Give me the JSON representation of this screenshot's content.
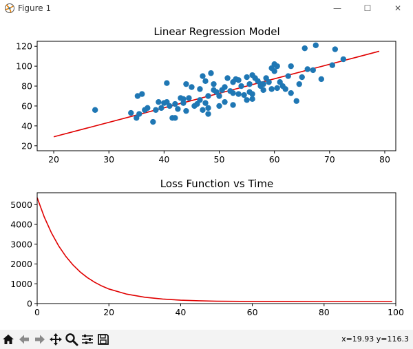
{
  "window": {
    "title": "Figure 1",
    "minimize_glyph": "—",
    "maximize_glyph": "☐",
    "close_glyph": "✕"
  },
  "toolbar": {
    "icons": [
      "home-icon",
      "back-arrow-icon",
      "forward-arrow-icon",
      "pan-icon",
      "zoom-icon",
      "configure-subplots-icon",
      "save-icon"
    ],
    "coordinates": "x=19.93 y=116.3"
  },
  "colors": {
    "scatter": "#1f77b4",
    "line": "#e00000"
  },
  "chart_data": [
    {
      "type": "scatter",
      "title": "Linear Regression Model",
      "xlabel": "",
      "ylabel": "",
      "xlim": [
        17,
        82
      ],
      "ylim": [
        15,
        125
      ],
      "xticks": [
        20,
        30,
        40,
        50,
        60,
        70,
        80
      ],
      "yticks": [
        20,
        40,
        60,
        80,
        100,
        120
      ],
      "points": [
        [
          27.5,
          56
        ],
        [
          34,
          53
        ],
        [
          35,
          48
        ],
        [
          35.2,
          70
        ],
        [
          35.5,
          52
        ],
        [
          36,
          72
        ],
        [
          36.5,
          56
        ],
        [
          37,
          58
        ],
        [
          38,
          44
        ],
        [
          38.5,
          56
        ],
        [
          39,
          64
        ],
        [
          39.5,
          58
        ],
        [
          40,
          63
        ],
        [
          40.5,
          64
        ],
        [
          40.5,
          83
        ],
        [
          41,
          60
        ],
        [
          41.5,
          48
        ],
        [
          42,
          48
        ],
        [
          42,
          62
        ],
        [
          42.5,
          57
        ],
        [
          43,
          68
        ],
        [
          43.5,
          63
        ],
        [
          43.5,
          67
        ],
        [
          44,
          82
        ],
        [
          44,
          55
        ],
        [
          44.5,
          68
        ],
        [
          45,
          79
        ],
        [
          45.5,
          60
        ],
        [
          46,
          62
        ],
        [
          46.5,
          66
        ],
        [
          46.5,
          77
        ],
        [
          47,
          90
        ],
        [
          47,
          56
        ],
        [
          47.5,
          85
        ],
        [
          47.5,
          63
        ],
        [
          48,
          58
        ],
        [
          48,
          70
        ],
        [
          48,
          52
        ],
        [
          48.5,
          93
        ],
        [
          49,
          82
        ],
        [
          49,
          76
        ],
        [
          49.5,
          74
        ],
        [
          50,
          60
        ],
        [
          50,
          70
        ],
        [
          50.5,
          76
        ],
        [
          51,
          79
        ],
        [
          51,
          64
        ],
        [
          51.5,
          88
        ],
        [
          52,
          75
        ],
        [
          52.5,
          73
        ],
        [
          52.5,
          84
        ],
        [
          52.5,
          61
        ],
        [
          53,
          87
        ],
        [
          53.5,
          86
        ],
        [
          53.5,
          72
        ],
        [
          54,
          80
        ],
        [
          54.5,
          71
        ],
        [
          55,
          89
        ],
        [
          55,
          66
        ],
        [
          55.5,
          74
        ],
        [
          55.5,
          82
        ],
        [
          56,
          91
        ],
        [
          56,
          72
        ],
        [
          56,
          67
        ],
        [
          56.5,
          88
        ],
        [
          57,
          85
        ],
        [
          57.5,
          82
        ],
        [
          57.5,
          80
        ],
        [
          58,
          76
        ],
        [
          58,
          82
        ],
        [
          58.5,
          88
        ],
        [
          59,
          84
        ],
        [
          59.5,
          98
        ],
        [
          59.5,
          77
        ],
        [
          60,
          95
        ],
        [
          60,
          102
        ],
        [
          60.5,
          100
        ],
        [
          60.5,
          78
        ],
        [
          61,
          84
        ],
        [
          61.5,
          80
        ],
        [
          62,
          77
        ],
        [
          62.5,
          90
        ],
        [
          63,
          73
        ],
        [
          63,
          100
        ],
        [
          64,
          65
        ],
        [
          64.5,
          82
        ],
        [
          65,
          89
        ],
        [
          65.5,
          118
        ],
        [
          66,
          97
        ],
        [
          67,
          96
        ],
        [
          67.5,
          121
        ],
        [
          68.5,
          87
        ],
        [
          70.5,
          101
        ],
        [
          71,
          117
        ],
        [
          72.5,
          107
        ]
      ],
      "series": [
        {
          "type": "line",
          "x": [
            20,
            79
          ],
          "y": [
            29,
            115
          ]
        }
      ]
    },
    {
      "type": "line",
      "title": "Loss Function vs Time",
      "xlabel": "",
      "ylabel": "",
      "xlim": [
        0,
        100
      ],
      "ylim": [
        0,
        5600
      ],
      "xticks": [
        0,
        20,
        40,
        60,
        80,
        100
      ],
      "yticks": [
        0,
        1000,
        2000,
        3000,
        4000,
        5000
      ],
      "series": [
        {
          "x": [
            0,
            2,
            4,
            6,
            8,
            10,
            12,
            14,
            16,
            18,
            20,
            25,
            30,
            35,
            40,
            45,
            50,
            60,
            70,
            80,
            90,
            99
          ],
          "y": [
            5350,
            4365,
            3564,
            2911,
            2380,
            1948,
            1597,
            1311,
            1079,
            890,
            737,
            475,
            320,
            227,
            173,
            140,
            120,
            106,
            102,
            100,
            100,
            100
          ]
        }
      ]
    }
  ]
}
